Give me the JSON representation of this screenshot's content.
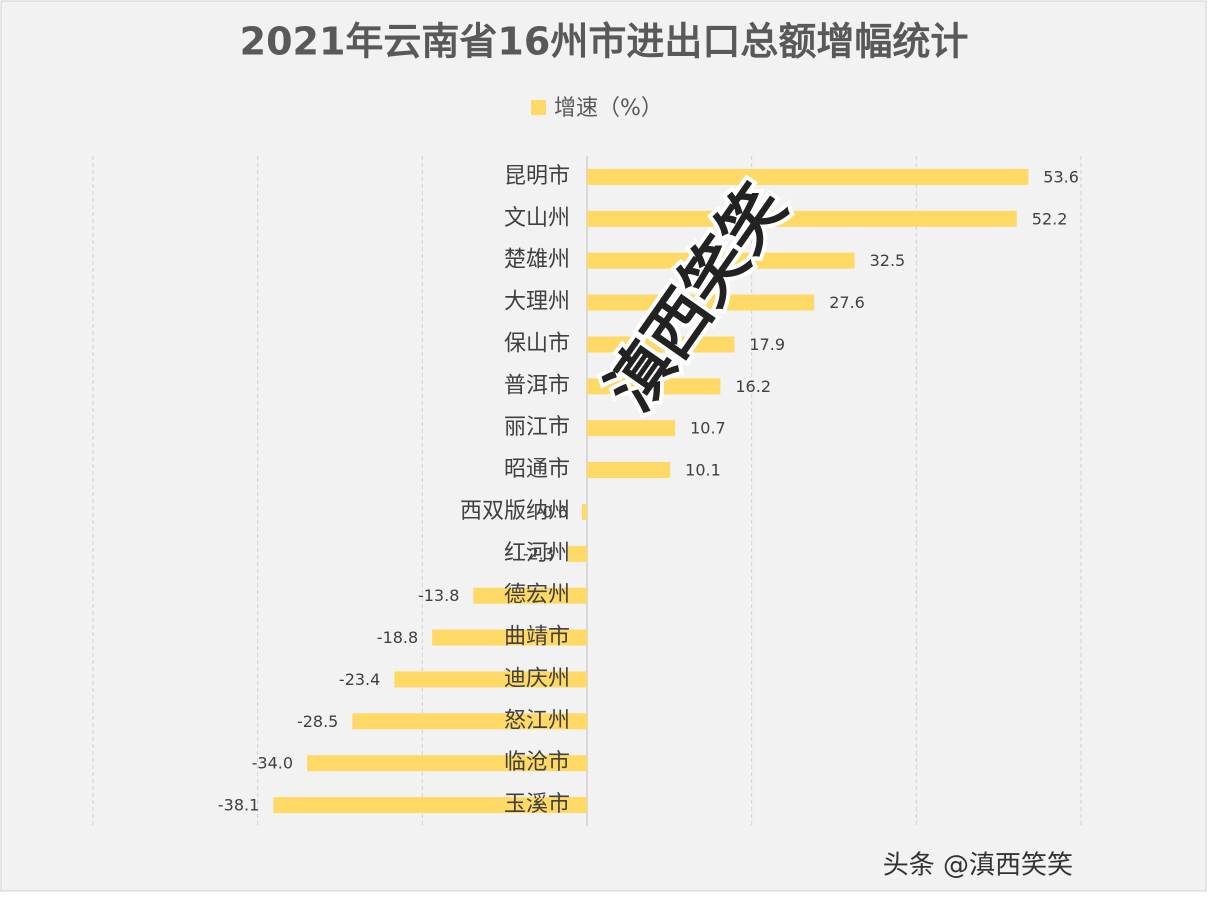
{
  "chart_data": {
    "type": "hbar",
    "title": "2021年云南省16州市进出口总额增幅统计",
    "categories": [
      "昆明市",
      "文山州",
      "楚雄州",
      "大理州",
      "保山市",
      "普洱市",
      "丽江市",
      "昭通市",
      "西双版纳州",
      "红河州",
      "德宏州",
      "曲靖市",
      "迪庆州",
      "怒江州",
      "临沧市",
      "玉溪市"
    ],
    "series": [
      {
        "name": "增速（%）",
        "color": "#ffd966",
        "values": [
          53.6,
          52.2,
          32.5,
          27.6,
          17.9,
          16.2,
          10.7,
          10.1,
          -0.6,
          -2.3,
          -13.8,
          -18.8,
          -23.4,
          -28.5,
          -34,
          -38.1
        ],
        "value_labels": [
          "53.6",
          "52.2",
          "32.5",
          "27.6",
          "17.9",
          "16.2",
          "10.7",
          "10.1",
          "-0.6",
          "-2.3",
          "-13.8",
          "-18.8",
          "-23.4",
          "-28.5",
          "-34.0",
          "-38.1"
        ]
      }
    ],
    "xlim": [
      -60,
      60
    ],
    "xticks": [
      -60,
      -40,
      -20,
      0,
      20,
      40,
      60
    ],
    "grid": true,
    "legend": "top",
    "annotations": [
      "滇西笑笑",
      "头条 @滇西笑笑"
    ]
  }
}
